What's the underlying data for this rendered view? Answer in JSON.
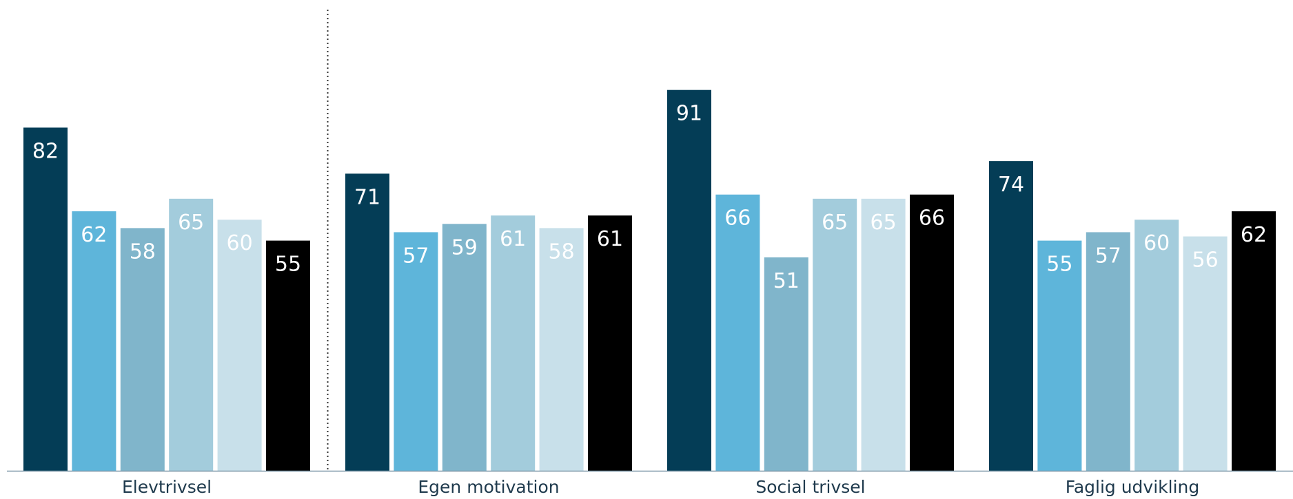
{
  "chart_data": {
    "type": "bar",
    "title": "",
    "xlabel": "",
    "ylabel": "",
    "ylim": [
      0,
      100
    ],
    "grid": false,
    "legend": "none",
    "categories": [
      "Elevtrivsel",
      "Egen motivation",
      "Social trivsel",
      "Faglig udvikling"
    ],
    "series": [
      {
        "color": "#043d56",
        "values": [
          82,
          71,
          91,
          74
        ]
      },
      {
        "color": "#5eb5da",
        "values": [
          62,
          57,
          66,
          55
        ]
      },
      {
        "color": "#80b5cb",
        "values": [
          58,
          59,
          51,
          57
        ]
      },
      {
        "color": "#a3ccdc",
        "values": [
          65,
          61,
          65,
          60
        ]
      },
      {
        "color": "#c8e0ea",
        "values": [
          60,
          58,
          65,
          56
        ]
      },
      {
        "color": "#000000",
        "values": [
          55,
          61,
          66,
          62
        ]
      }
    ],
    "separator_after_category": 0,
    "baseline_color": "#7d97a8"
  }
}
